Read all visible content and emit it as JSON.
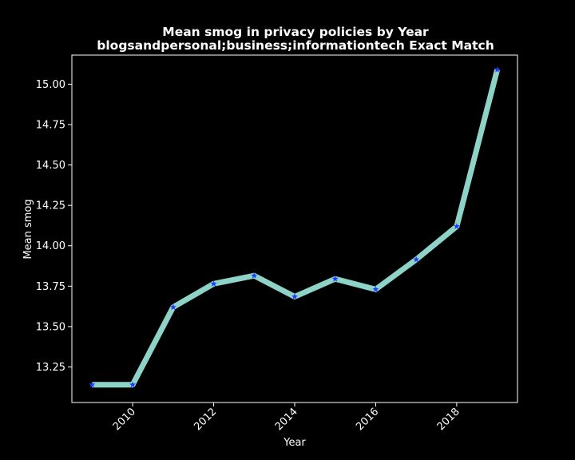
{
  "chart_data": {
    "type": "line",
    "title_lines": [
      "Mean smog in privacy policies by Year",
      "blogsandpersonal;business;informationtech Exact Match"
    ],
    "xlabel": "Year",
    "ylabel": "Mean smog",
    "x": [
      2009,
      2010,
      2011,
      2012,
      2013,
      2014,
      2015,
      2016,
      2017,
      2018,
      2019
    ],
    "y": [
      13.14,
      13.14,
      13.62,
      13.765,
      13.815,
      13.685,
      13.795,
      13.73,
      13.915,
      14.12,
      15.09
    ],
    "xlim": [
      2008.5,
      2019.5
    ],
    "ylim": [
      13.03,
      15.18
    ],
    "xticks": [
      2010,
      2012,
      2014,
      2016,
      2018
    ],
    "yticks": [
      13.25,
      13.5,
      13.75,
      14.0,
      14.25,
      14.5,
      14.75,
      15.0
    ],
    "ytick_labels": [
      "13.25",
      "13.50",
      "13.75",
      "14.00",
      "14.25",
      "14.50",
      "14.75",
      "15.00"
    ],
    "line_color": "#8dd3c7",
    "marker_color": "#1f3cff",
    "marker": "star",
    "background_color": "#000000",
    "grid": false,
    "legend": "none"
  }
}
